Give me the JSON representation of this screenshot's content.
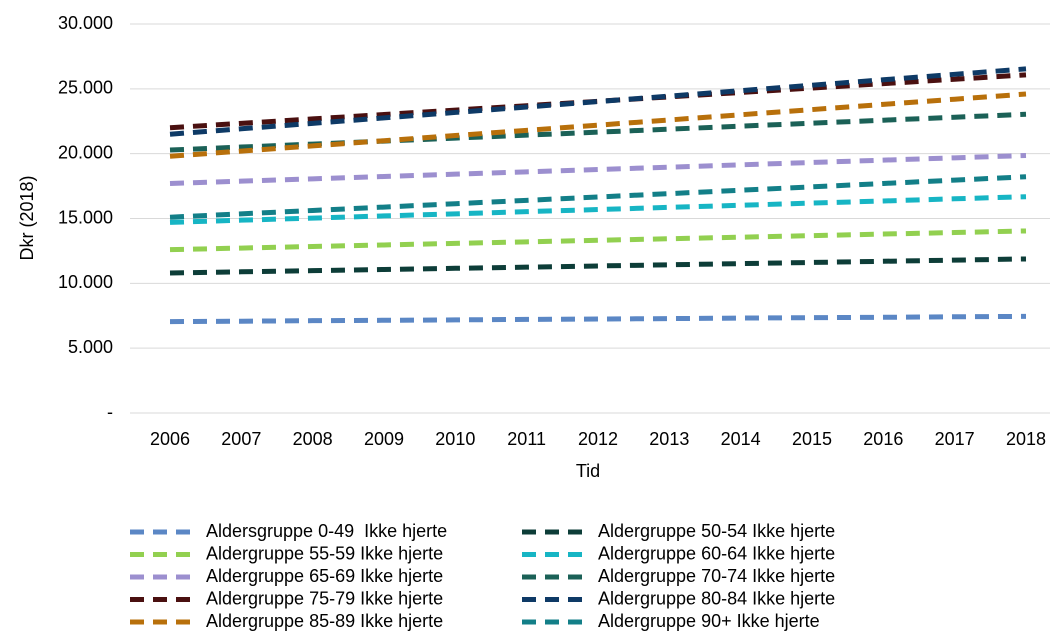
{
  "chart_data": {
    "type": "line",
    "y_label": "Dkr (2018)",
    "x_label": "Tid",
    "categories": [
      "2006",
      "2007",
      "2008",
      "2009",
      "2010",
      "2011",
      "2012",
      "2013",
      "2014",
      "2015",
      "2016",
      "2017",
      "2018"
    ],
    "ylim": [
      0,
      30000
    ],
    "yticks": [
      {
        "value": 0,
        "label": "-"
      },
      {
        "value": 5000,
        "label": "5.000"
      },
      {
        "value": 10000,
        "label": "10.000"
      },
      {
        "value": 15000,
        "label": "15.000"
      },
      {
        "value": 20000,
        "label": "20.000"
      },
      {
        "value": 25000,
        "label": "25.000"
      },
      {
        "value": 30000,
        "label": "30.000"
      }
    ],
    "grid": true,
    "line_style": "dashed",
    "series": [
      {
        "name": "Aldersgruppe 0-49  Ikke hjerte",
        "color": "#5b87c5",
        "values": [
          7050,
          7080,
          7120,
          7150,
          7180,
          7220,
          7250,
          7280,
          7320,
          7350,
          7380,
          7420,
          7450
        ]
      },
      {
        "name": "Aldergruppe 50-54 Ikke hjerte",
        "color": "#0d3d38",
        "values": [
          10800,
          10890,
          10980,
          11070,
          11160,
          11250,
          11340,
          11430,
          11520,
          11610,
          11700,
          11790,
          11880
        ]
      },
      {
        "name": "Aldergruppe 55-59 Ikke hjerte",
        "color": "#92d050",
        "values": [
          12600,
          12720,
          12840,
          12960,
          13080,
          13200,
          13320,
          13440,
          13560,
          13680,
          13800,
          13920,
          14040
        ]
      },
      {
        "name": "Aldergruppe 60-64 Ikke hjerte",
        "color": "#17b5c4",
        "values": [
          14700,
          14870,
          15030,
          15200,
          15360,
          15530,
          15690,
          15860,
          16020,
          16190,
          16350,
          16520,
          16680
        ]
      },
      {
        "name": "Aldergruppe 65-69 Ikke hjerte",
        "color": "#9c8fcf",
        "values": [
          17700,
          17880,
          18060,
          18240,
          18420,
          18600,
          18780,
          18960,
          19140,
          19320,
          19500,
          19680,
          19860
        ]
      },
      {
        "name": "Aldergruppe 70-74 Ikke hjerte",
        "color": "#1b6157",
        "values": [
          20280,
          20510,
          20740,
          20970,
          21200,
          21430,
          21660,
          21890,
          22120,
          22350,
          22580,
          22810,
          23040
        ]
      },
      {
        "name": "Aldergruppe 75-79 Ikke hjerte",
        "color": "#4a1010",
        "values": [
          22000,
          22340,
          22680,
          23020,
          23360,
          23700,
          24040,
          24380,
          24720,
          25060,
          25400,
          25740,
          26080
        ]
      },
      {
        "name": "Aldergruppe 80-84 Ikke hjerte",
        "color": "#0e3a66",
        "values": [
          21500,
          21920,
          22340,
          22760,
          23180,
          23600,
          24020,
          24440,
          24860,
          25280,
          25700,
          26120,
          26540
        ]
      },
      {
        "name": "Aldergruppe 85-89 Ikke hjerte",
        "color": "#b8700b",
        "values": [
          19800,
          20200,
          20600,
          21000,
          21400,
          21800,
          22200,
          22600,
          23000,
          23400,
          23800,
          24200,
          24600
        ]
      },
      {
        "name": "Aldergruppe 90+ Ikke hjerte",
        "color": "#137f88",
        "values": [
          15100,
          15360,
          15620,
          15880,
          16140,
          16400,
          16660,
          16920,
          17180,
          17440,
          17700,
          17960,
          18220
        ]
      }
    ]
  }
}
